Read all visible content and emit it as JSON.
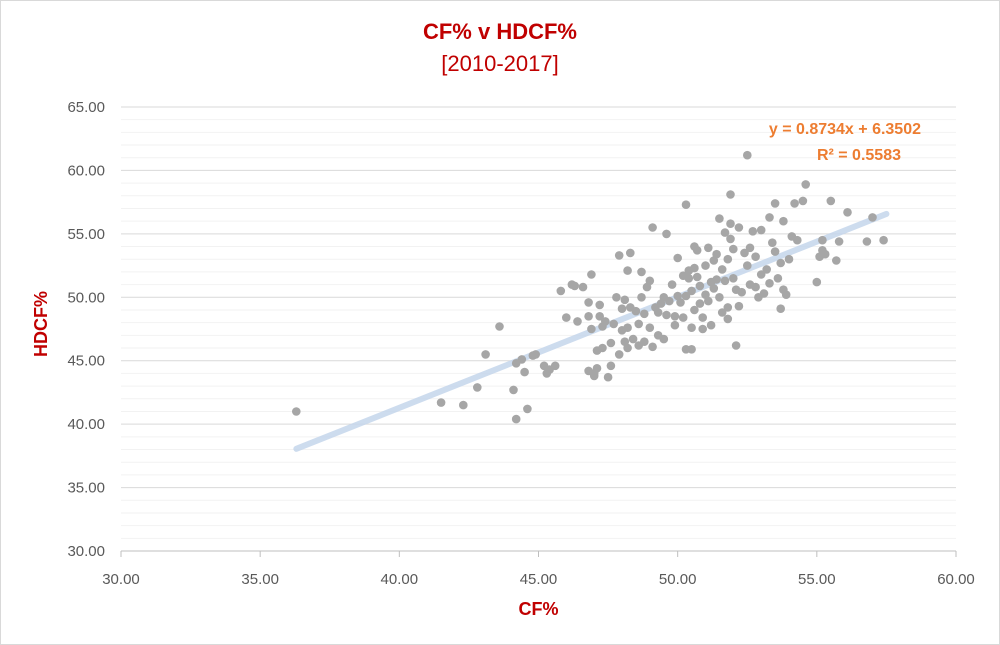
{
  "chart_data": {
    "type": "scatter",
    "title": "CF% v HDCF%",
    "subtitle": "[2010-2017]",
    "xlabel": "CF%",
    "ylabel": "HDCF%",
    "xlim": [
      30,
      60
    ],
    "ylim": [
      30,
      65
    ],
    "x_ticks": [
      "30.00",
      "35.00",
      "40.00",
      "45.00",
      "50.00",
      "55.00",
      "60.00"
    ],
    "y_ticks": [
      "30.00",
      "35.00",
      "40.00",
      "45.00",
      "50.00",
      "55.00",
      "60.00",
      "65.00"
    ],
    "grid": true,
    "point_color": "#a6a6a6",
    "trendline": {
      "type": "linear",
      "slope": 0.8734,
      "intercept": 6.3502,
      "x_range": [
        36.3,
        57.5
      ],
      "color": "#c5d6ec",
      "equation": "y = 0.8734x + 6.3502",
      "r_squared": "R² = 0.5583"
    },
    "points": [
      [
        36.3,
        41.0
      ],
      [
        41.5,
        41.7
      ],
      [
        42.3,
        41.5
      ],
      [
        42.8,
        42.9
      ],
      [
        43.1,
        45.5
      ],
      [
        43.6,
        47.7
      ],
      [
        44.1,
        42.7
      ],
      [
        44.2,
        40.4
      ],
      [
        44.2,
        44.8
      ],
      [
        44.4,
        45.1
      ],
      [
        44.5,
        44.1
      ],
      [
        44.6,
        41.2
      ],
      [
        44.8,
        45.4
      ],
      [
        44.9,
        45.5
      ],
      [
        45.2,
        44.6
      ],
      [
        45.3,
        44.0
      ],
      [
        45.4,
        44.3
      ],
      [
        45.6,
        44.6
      ],
      [
        45.8,
        50.5
      ],
      [
        46.0,
        48.4
      ],
      [
        46.2,
        51.0
      ],
      [
        46.3,
        50.9
      ],
      [
        46.4,
        48.1
      ],
      [
        46.6,
        50.8
      ],
      [
        46.8,
        48.5
      ],
      [
        46.8,
        49.6
      ],
      [
        46.9,
        51.8
      ],
      [
        46.8,
        44.2
      ],
      [
        46.9,
        47.5
      ],
      [
        47.0,
        44.0
      ],
      [
        47.0,
        43.8
      ],
      [
        47.1,
        44.4
      ],
      [
        47.1,
        45.8
      ],
      [
        47.2,
        48.5
      ],
      [
        47.2,
        49.4
      ],
      [
        47.3,
        47.7
      ],
      [
        47.3,
        46.0
      ],
      [
        47.4,
        48.1
      ],
      [
        47.5,
        43.7
      ],
      [
        47.6,
        44.6
      ],
      [
        47.6,
        46.4
      ],
      [
        47.7,
        47.9
      ],
      [
        47.8,
        50.0
      ],
      [
        47.9,
        53.3
      ],
      [
        47.9,
        45.5
      ],
      [
        48.0,
        47.4
      ],
      [
        48.0,
        49.1
      ],
      [
        48.1,
        49.8
      ],
      [
        48.1,
        46.5
      ],
      [
        48.2,
        46.0
      ],
      [
        48.2,
        47.6
      ],
      [
        48.2,
        52.1
      ],
      [
        48.3,
        53.5
      ],
      [
        48.3,
        49.2
      ],
      [
        48.4,
        46.7
      ],
      [
        48.5,
        48.9
      ],
      [
        48.6,
        46.2
      ],
      [
        48.6,
        47.9
      ],
      [
        48.7,
        50.0
      ],
      [
        48.7,
        52.0
      ],
      [
        48.8,
        46.5
      ],
      [
        48.8,
        48.7
      ],
      [
        48.9,
        50.8
      ],
      [
        49.0,
        47.6
      ],
      [
        49.0,
        51.3
      ],
      [
        49.1,
        55.5
      ],
      [
        49.1,
        46.1
      ],
      [
        49.2,
        49.2
      ],
      [
        49.3,
        47.0
      ],
      [
        49.3,
        48.8
      ],
      [
        49.4,
        49.5
      ],
      [
        49.5,
        50.0
      ],
      [
        49.5,
        46.7
      ],
      [
        49.6,
        48.6
      ],
      [
        49.6,
        55.0
      ],
      [
        49.7,
        49.7
      ],
      [
        49.8,
        51.0
      ],
      [
        49.9,
        48.5
      ],
      [
        49.9,
        47.8
      ],
      [
        50.0,
        50.1
      ],
      [
        50.0,
        53.1
      ],
      [
        50.1,
        49.6
      ],
      [
        50.2,
        48.4
      ],
      [
        50.2,
        51.7
      ],
      [
        50.3,
        50.1
      ],
      [
        50.3,
        45.9
      ],
      [
        50.3,
        57.3
      ],
      [
        50.4,
        51.5
      ],
      [
        50.4,
        52.1
      ],
      [
        50.5,
        50.5
      ],
      [
        50.5,
        47.6
      ],
      [
        50.5,
        45.9
      ],
      [
        50.6,
        49.0
      ],
      [
        50.6,
        52.3
      ],
      [
        50.6,
        54.0
      ],
      [
        50.7,
        53.7
      ],
      [
        50.7,
        51.6
      ],
      [
        50.8,
        50.9
      ],
      [
        50.8,
        49.5
      ],
      [
        50.9,
        48.4
      ],
      [
        50.9,
        47.5
      ],
      [
        51.0,
        50.2
      ],
      [
        51.0,
        52.5
      ],
      [
        51.1,
        53.9
      ],
      [
        51.1,
        49.7
      ],
      [
        51.2,
        51.2
      ],
      [
        51.2,
        47.8
      ],
      [
        51.3,
        50.7
      ],
      [
        51.3,
        52.9
      ],
      [
        51.4,
        53.4
      ],
      [
        51.4,
        51.4
      ],
      [
        51.5,
        50.0
      ],
      [
        51.5,
        56.2
      ],
      [
        51.6,
        48.8
      ],
      [
        51.6,
        52.2
      ],
      [
        51.7,
        55.1
      ],
      [
        51.7,
        51.3
      ],
      [
        51.8,
        49.2
      ],
      [
        51.8,
        53.0
      ],
      [
        51.8,
        48.3
      ],
      [
        51.9,
        54.6
      ],
      [
        51.9,
        55.8
      ],
      [
        51.9,
        58.1
      ],
      [
        52.0,
        53.8
      ],
      [
        52.0,
        51.5
      ],
      [
        52.1,
        50.6
      ],
      [
        52.1,
        46.2
      ],
      [
        52.2,
        49.3
      ],
      [
        52.2,
        55.5
      ],
      [
        52.3,
        50.4
      ],
      [
        52.4,
        53.5
      ],
      [
        52.5,
        61.2
      ],
      [
        52.5,
        52.5
      ],
      [
        52.6,
        51.0
      ],
      [
        52.6,
        53.9
      ],
      [
        52.7,
        55.2
      ],
      [
        52.8,
        50.8
      ],
      [
        52.8,
        53.2
      ],
      [
        52.9,
        50.0
      ],
      [
        53.0,
        55.3
      ],
      [
        53.0,
        51.8
      ],
      [
        53.1,
        50.3
      ],
      [
        53.2,
        52.2
      ],
      [
        53.3,
        56.3
      ],
      [
        53.3,
        51.1
      ],
      [
        53.4,
        54.3
      ],
      [
        53.5,
        57.4
      ],
      [
        53.5,
        53.6
      ],
      [
        53.6,
        51.5
      ],
      [
        53.7,
        52.7
      ],
      [
        53.7,
        49.1
      ],
      [
        53.8,
        56.0
      ],
      [
        53.8,
        50.6
      ],
      [
        53.9,
        50.2
      ],
      [
        54.0,
        53.0
      ],
      [
        54.1,
        54.8
      ],
      [
        54.2,
        57.4
      ],
      [
        54.3,
        54.5
      ],
      [
        54.5,
        57.6
      ],
      [
        54.6,
        58.9
      ],
      [
        55.0,
        51.2
      ],
      [
        55.1,
        53.2
      ],
      [
        55.2,
        54.5
      ],
      [
        55.2,
        53.7
      ],
      [
        55.3,
        53.4
      ],
      [
        55.5,
        57.6
      ],
      [
        55.7,
        52.9
      ],
      [
        55.8,
        54.4
      ],
      [
        56.1,
        56.7
      ],
      [
        56.8,
        54.4
      ],
      [
        57.0,
        56.3
      ],
      [
        57.4,
        54.5
      ]
    ]
  }
}
